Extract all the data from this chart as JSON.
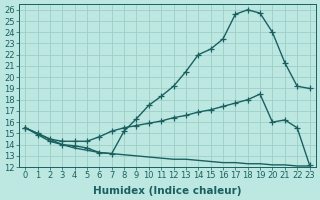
{
  "title": "",
  "xlabel": "Humidex (Indice chaleur)",
  "background_color": "#bde8e2",
  "grid_color": "#9ececa",
  "line_color": "#1a6060",
  "xlim": [
    -0.5,
    23.5
  ],
  "ylim": [
    12,
    26.5
  ],
  "yticks": [
    12,
    13,
    14,
    15,
    16,
    17,
    18,
    19,
    20,
    21,
    22,
    23,
    24,
    25,
    26
  ],
  "xticks": [
    0,
    1,
    2,
    3,
    4,
    5,
    6,
    7,
    8,
    9,
    10,
    11,
    12,
    13,
    14,
    15,
    16,
    17,
    18,
    19,
    20,
    21,
    22,
    23
  ],
  "line1_y": [
    15.5,
    14.9,
    14.3,
    14.0,
    13.9,
    13.7,
    13.3,
    13.2,
    15.2,
    16.3,
    17.5,
    18.3,
    19.2,
    20.5,
    22.0,
    22.5,
    23.4,
    25.6,
    26.0,
    25.7,
    24.0,
    21.3,
    19.2,
    19.0
  ],
  "line2_y": [
    15.5,
    15.0,
    14.5,
    14.3,
    14.3,
    14.3,
    14.7,
    15.2,
    15.5,
    15.7,
    15.9,
    16.1,
    16.4,
    16.6,
    16.9,
    17.1,
    17.4,
    17.7,
    18.0,
    18.5,
    16.0,
    16.2,
    15.5,
    12.2
  ],
  "line3_y": [
    15.5,
    15.0,
    14.5,
    14.0,
    13.7,
    13.5,
    13.3,
    13.2,
    13.1,
    13.0,
    12.9,
    12.8,
    12.7,
    12.7,
    12.6,
    12.5,
    12.4,
    12.4,
    12.3,
    12.3,
    12.2,
    12.2,
    12.1,
    12.1
  ],
  "tick_fontsize": 6.0,
  "label_fontsize": 7.5
}
